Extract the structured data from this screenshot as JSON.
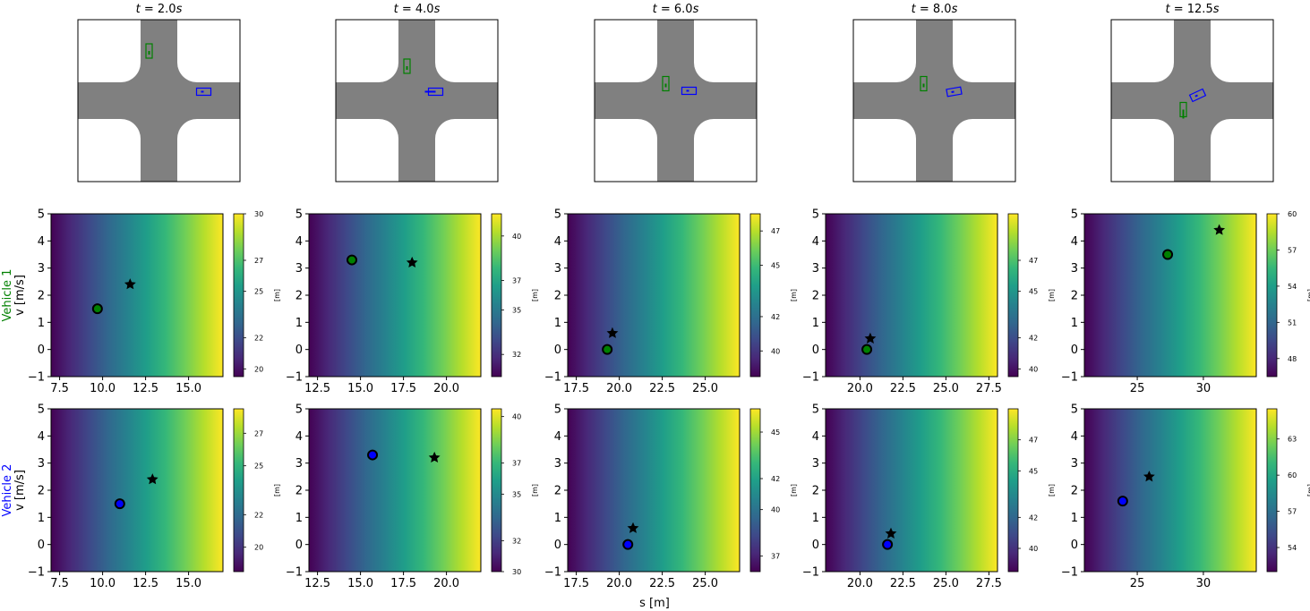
{
  "figure": {
    "xlabel": "s [m]",
    "cbar_label": "[m]",
    "row_labels": [
      {
        "name": "Vehicle 1",
        "unit": "v [m/s]",
        "color": "#008000"
      },
      {
        "name": "Vehicle 2",
        "unit": "v [m/s]",
        "color": "#0000ff"
      }
    ]
  },
  "colors": {
    "road": "#808080",
    "vehicle1": "#008000",
    "vehicle2": "#0000ff",
    "marker": "#000000"
  },
  "chart_data": [
    {
      "type": "scene",
      "title": "t = 2.0s",
      "t_value": "2.0",
      "vehicle1": "vertical-top",
      "vehicle2": "horizontal-right"
    },
    {
      "type": "scene",
      "title": "t = 4.0s",
      "t_value": "4.0",
      "vehicle1": "vertical-top",
      "vehicle2": "horizontal-right"
    },
    {
      "type": "scene",
      "title": "t = 6.0s",
      "t_value": "6.0",
      "vehicle1": "center",
      "vehicle2": "center"
    },
    {
      "type": "scene",
      "title": "t = 8.0s",
      "t_value": "8.0",
      "vehicle1": "center",
      "vehicle2": "center-rotated"
    },
    {
      "type": "scene",
      "title": "t = 12.5s",
      "t_value": "12.5",
      "vehicle1": "bottom-left",
      "vehicle2": "rotated"
    },
    {
      "type": "heatmap",
      "vehicle": 1,
      "xlim": [
        7.0,
        17.0
      ],
      "ylim": [
        -1,
        5
      ],
      "xticks": [
        "7.5",
        "10.0",
        "12.5",
        "15.0"
      ],
      "yticks": [
        "-1",
        "0",
        "1",
        "2",
        "3",
        "4",
        "5"
      ],
      "circle": [
        9.7,
        1.5
      ],
      "star": [
        11.6,
        2.4
      ],
      "clim": [
        19.5,
        30.0
      ],
      "cbar_ticks": [
        "20",
        "22",
        "25",
        "27",
        "30"
      ]
    },
    {
      "type": "heatmap",
      "vehicle": 1,
      "xlim": [
        12.0,
        22.0
      ],
      "ylim": [
        -1,
        5
      ],
      "xticks": [
        "12.5",
        "15.0",
        "17.5",
        "20.0"
      ],
      "yticks": [
        "-1",
        "0",
        "1",
        "2",
        "3",
        "4",
        "5"
      ],
      "circle": [
        14.5,
        3.3
      ],
      "star": [
        18.0,
        3.2
      ],
      "clim": [
        30.5,
        41.5
      ],
      "cbar_ticks": [
        "32",
        "35",
        "37",
        "40"
      ]
    },
    {
      "type": "heatmap",
      "vehicle": 1,
      "xlim": [
        17.0,
        27.0
      ],
      "ylim": [
        -1,
        5
      ],
      "xticks": [
        "17.5",
        "20.0",
        "22.5",
        "25.0"
      ],
      "yticks": [
        "-1",
        "0",
        "1",
        "2",
        "3",
        "4",
        "5"
      ],
      "circle": [
        19.3,
        0.0
      ],
      "star": [
        19.6,
        0.6
      ],
      "clim": [
        38.5,
        48.0
      ],
      "cbar_ticks": [
        "40",
        "42",
        "45",
        "47"
      ]
    },
    {
      "type": "heatmap",
      "vehicle": 1,
      "xlim": [
        18.0,
        28.0
      ],
      "ylim": [
        -1,
        5
      ],
      "xticks": [
        "20.0",
        "22.5",
        "25.0",
        "27.5"
      ],
      "yticks": [
        "-1",
        "0",
        "1",
        "2",
        "3",
        "4",
        "5"
      ],
      "circle": [
        20.4,
        0.0
      ],
      "star": [
        20.6,
        0.4
      ],
      "clim": [
        39.5,
        50.0
      ],
      "cbar_ticks": [
        "40",
        "42",
        "45",
        "47"
      ]
    },
    {
      "type": "heatmap",
      "vehicle": 1,
      "xlim": [
        21.0,
        34.0
      ],
      "ylim": [
        -1,
        5
      ],
      "xticks": [
        "25",
        "30"
      ],
      "yticks": [
        "-1",
        "0",
        "1",
        "2",
        "3",
        "4",
        "5"
      ],
      "circle": [
        27.3,
        3.5
      ],
      "star": [
        31.2,
        4.4
      ],
      "clim": [
        46.5,
        60.0
      ],
      "cbar_ticks": [
        "48",
        "51",
        "54",
        "57",
        "60"
      ]
    },
    {
      "type": "heatmap",
      "vehicle": 2,
      "xlim": [
        7.0,
        17.0
      ],
      "ylim": [
        -1,
        5
      ],
      "xticks": [
        "7.5",
        "10.0",
        "12.5",
        "15.0"
      ],
      "yticks": [
        "-1",
        "0",
        "1",
        "2",
        "3",
        "4",
        "5"
      ],
      "circle": [
        11.0,
        1.5
      ],
      "star": [
        12.9,
        2.4
      ],
      "clim": [
        18.5,
        28.5
      ],
      "cbar_ticks": [
        "20",
        "22",
        "25",
        "27"
      ]
    },
    {
      "type": "heatmap",
      "vehicle": 2,
      "xlim": [
        12.0,
        22.0
      ],
      "ylim": [
        -1,
        5
      ],
      "xticks": [
        "12.5",
        "15.0",
        "17.5",
        "20.0"
      ],
      "yticks": [
        "-1",
        "0",
        "1",
        "2",
        "3",
        "4",
        "5"
      ],
      "circle": [
        15.7,
        3.3
      ],
      "star": [
        19.3,
        3.2
      ],
      "clim": [
        30.0,
        40.5
      ],
      "cbar_ticks": [
        "30",
        "32",
        "35",
        "37",
        "40"
      ]
    },
    {
      "type": "heatmap",
      "vehicle": 2,
      "xlim": [
        17.0,
        27.0
      ],
      "ylim": [
        -1,
        5
      ],
      "xticks": [
        "17.5",
        "20.0",
        "22.5",
        "25.0"
      ],
      "yticks": [
        "-1",
        "0",
        "1",
        "2",
        "3",
        "4",
        "5"
      ],
      "circle": [
        20.5,
        0.0
      ],
      "star": [
        20.8,
        0.6
      ],
      "clim": [
        36.0,
        46.5
      ],
      "cbar_ticks": [
        "37",
        "40",
        "42",
        "45"
      ]
    },
    {
      "type": "heatmap",
      "vehicle": 2,
      "xlim": [
        18.0,
        28.0
      ],
      "ylim": [
        -1,
        5
      ],
      "xticks": [
        "20.0",
        "22.5",
        "25.0",
        "27.5"
      ],
      "yticks": [
        "-1",
        "0",
        "1",
        "2",
        "3",
        "4",
        "5"
      ],
      "circle": [
        21.6,
        0.0
      ],
      "star": [
        21.8,
        0.4
      ],
      "clim": [
        38.5,
        49.0
      ],
      "cbar_ticks": [
        "40",
        "42",
        "45",
        "47"
      ]
    },
    {
      "type": "heatmap",
      "vehicle": 2,
      "xlim": [
        21.0,
        34.0
      ],
      "ylim": [
        -1,
        5
      ],
      "xticks": [
        "25",
        "30"
      ],
      "yticks": [
        "-1",
        "0",
        "1",
        "2",
        "3",
        "4",
        "5"
      ],
      "circle": [
        23.9,
        1.6
      ],
      "star": [
        25.9,
        2.5
      ],
      "clim": [
        52.0,
        65.5
      ],
      "cbar_ticks": [
        "54",
        "57",
        "60",
        "63"
      ]
    }
  ]
}
